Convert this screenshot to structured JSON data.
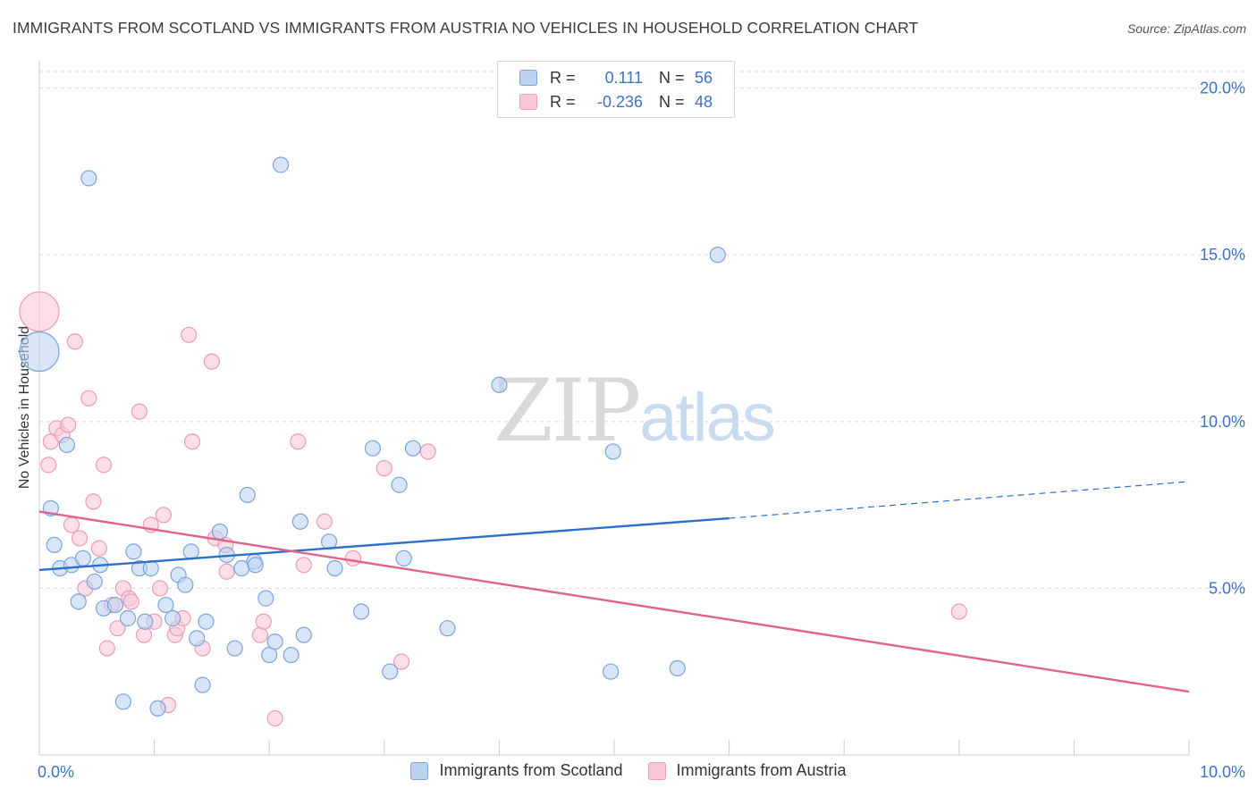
{
  "header": {
    "title": "IMMIGRANTS FROM SCOTLAND VS IMMIGRANTS FROM AUSTRIA NO VEHICLES IN HOUSEHOLD CORRELATION CHART",
    "source": "Source: ZipAtlas.com"
  },
  "watermark": {
    "zip": "ZIP",
    "atlas": "atlas"
  },
  "legend": {
    "rows": [
      {
        "r_label": "R =",
        "r_value": "0.111",
        "n_label": "N =",
        "n_value": "56"
      },
      {
        "r_label": "R =",
        "r_value": "-0.236",
        "n_label": "N =",
        "n_value": "48"
      }
    ]
  },
  "colors": {
    "scotland_fill": "#bcd3f0",
    "scotland_stroke": "#7ba4dc",
    "scotland_line": "#2e6fcc",
    "austria_fill": "#f8c8d8",
    "austria_stroke": "#ee9ab8",
    "austria_line": "#e0628f",
    "tick_label": "#3d72c4"
  },
  "chart_data": {
    "type": "scatter",
    "title": "IMMIGRANTS FROM SCOTLAND VS IMMIGRANTS FROM AUSTRIA NO VEHICLES IN HOUSEHOLD CORRELATION CHART",
    "xlabel": "",
    "ylabel": "No Vehicles in Household",
    "xlim": [
      0,
      10
    ],
    "ylim": [
      0,
      20.5
    ],
    "x_tick_labels": [
      "0.0%",
      "10.0%"
    ],
    "y_ticks": [
      5,
      10,
      15,
      20
    ],
    "y_tick_labels": [
      "5.0%",
      "10.0%",
      "15.0%",
      "20.0%"
    ],
    "grid": true,
    "legend_position": "top-center",
    "series": [
      {
        "name": "Immigrants from Scotland",
        "r": 0.111,
        "n": 56,
        "trend": {
          "x0": 0,
          "y0": 5.55,
          "x1": 6,
          "y1": 7.1,
          "dash_x1": 10,
          "dash_y1": 8.2
        },
        "points": [
          {
            "x": 0.0,
            "y": 12.1,
            "big": true
          },
          {
            "x": 0.1,
            "y": 7.4
          },
          {
            "x": 0.13,
            "y": 6.3
          },
          {
            "x": 0.18,
            "y": 5.6
          },
          {
            "x": 0.24,
            "y": 9.3
          },
          {
            "x": 0.28,
            "y": 5.7
          },
          {
            "x": 0.34,
            "y": 4.6
          },
          {
            "x": 0.38,
            "y": 5.9
          },
          {
            "x": 0.43,
            "y": 17.3
          },
          {
            "x": 0.48,
            "y": 5.2
          },
          {
            "x": 0.53,
            "y": 5.7
          },
          {
            "x": 0.56,
            "y": 4.4
          },
          {
            "x": 0.66,
            "y": 4.5
          },
          {
            "x": 0.73,
            "y": 1.6
          },
          {
            "x": 0.77,
            "y": 4.1
          },
          {
            "x": 0.82,
            "y": 6.1
          },
          {
            "x": 0.87,
            "y": 5.6
          },
          {
            "x": 0.92,
            "y": 4.0
          },
          {
            "x": 0.97,
            "y": 5.6
          },
          {
            "x": 1.03,
            "y": 1.4
          },
          {
            "x": 1.1,
            "y": 4.5
          },
          {
            "x": 1.16,
            "y": 4.1
          },
          {
            "x": 1.21,
            "y": 5.4
          },
          {
            "x": 1.27,
            "y": 5.1
          },
          {
            "x": 1.32,
            "y": 6.1
          },
          {
            "x": 1.37,
            "y": 3.5
          },
          {
            "x": 1.42,
            "y": 2.1
          },
          {
            "x": 1.45,
            "y": 4.0
          },
          {
            "x": 1.57,
            "y": 6.7
          },
          {
            "x": 1.63,
            "y": 6.0
          },
          {
            "x": 1.7,
            "y": 3.2
          },
          {
            "x": 1.76,
            "y": 5.6
          },
          {
            "x": 1.81,
            "y": 7.8
          },
          {
            "x": 1.87,
            "y": 5.8
          },
          {
            "x": 1.88,
            "y": 5.7
          },
          {
            "x": 1.97,
            "y": 4.7
          },
          {
            "x": 2.0,
            "y": 3.0
          },
          {
            "x": 2.05,
            "y": 3.4
          },
          {
            "x": 2.1,
            "y": 17.7
          },
          {
            "x": 2.19,
            "y": 3.0
          },
          {
            "x": 2.27,
            "y": 7.0
          },
          {
            "x": 2.3,
            "y": 3.6
          },
          {
            "x": 2.52,
            "y": 6.4
          },
          {
            "x": 2.57,
            "y": 5.6
          },
          {
            "x": 2.8,
            "y": 4.3
          },
          {
            "x": 2.9,
            "y": 9.2
          },
          {
            "x": 3.05,
            "y": 2.5
          },
          {
            "x": 3.13,
            "y": 8.1
          },
          {
            "x": 3.17,
            "y": 5.9
          },
          {
            "x": 3.25,
            "y": 9.2
          },
          {
            "x": 3.55,
            "y": 3.8
          },
          {
            "x": 4.0,
            "y": 11.1
          },
          {
            "x": 4.97,
            "y": 2.5
          },
          {
            "x": 4.99,
            "y": 9.1
          },
          {
            "x": 5.55,
            "y": 2.6
          },
          {
            "x": 5.9,
            "y": 15.0
          }
        ]
      },
      {
        "name": "Immigrants from Austria",
        "r": -0.236,
        "n": 48,
        "trend": {
          "x0": 0,
          "y0": 7.3,
          "x1": 10,
          "y1": 1.9
        },
        "points": [
          {
            "x": 0.0,
            "y": 13.3,
            "big": true
          },
          {
            "x": 0.08,
            "y": 8.7
          },
          {
            "x": 0.1,
            "y": 9.4
          },
          {
            "x": 0.15,
            "y": 9.8
          },
          {
            "x": 0.2,
            "y": 9.6
          },
          {
            "x": 0.25,
            "y": 9.9
          },
          {
            "x": 0.28,
            "y": 6.9
          },
          {
            "x": 0.31,
            "y": 12.4
          },
          {
            "x": 0.35,
            "y": 6.5
          },
          {
            "x": 0.4,
            "y": 5.0
          },
          {
            "x": 0.43,
            "y": 10.7
          },
          {
            "x": 0.47,
            "y": 7.6
          },
          {
            "x": 0.52,
            "y": 6.2
          },
          {
            "x": 0.56,
            "y": 8.7
          },
          {
            "x": 0.59,
            "y": 3.2
          },
          {
            "x": 0.63,
            "y": 4.5
          },
          {
            "x": 0.68,
            "y": 3.8
          },
          {
            "x": 0.73,
            "y": 5.0
          },
          {
            "x": 0.78,
            "y": 4.7
          },
          {
            "x": 0.8,
            "y": 4.6
          },
          {
            "x": 0.87,
            "y": 10.3
          },
          {
            "x": 0.91,
            "y": 3.6
          },
          {
            "x": 0.97,
            "y": 6.9
          },
          {
            "x": 1.0,
            "y": 4.0
          },
          {
            "x": 1.05,
            "y": 5.0
          },
          {
            "x": 1.08,
            "y": 7.2
          },
          {
            "x": 1.12,
            "y": 1.5
          },
          {
            "x": 1.18,
            "y": 3.6
          },
          {
            "x": 1.2,
            "y": 3.8
          },
          {
            "x": 1.25,
            "y": 4.1
          },
          {
            "x": 1.3,
            "y": 12.6
          },
          {
            "x": 1.33,
            "y": 9.4
          },
          {
            "x": 1.42,
            "y": 3.2
          },
          {
            "x": 1.5,
            "y": 11.8
          },
          {
            "x": 1.53,
            "y": 6.5
          },
          {
            "x": 1.62,
            "y": 6.3
          },
          {
            "x": 1.63,
            "y": 5.5
          },
          {
            "x": 1.92,
            "y": 3.6
          },
          {
            "x": 1.95,
            "y": 4.0
          },
          {
            "x": 2.05,
            "y": 1.1
          },
          {
            "x": 2.25,
            "y": 9.4
          },
          {
            "x": 2.3,
            "y": 5.7
          },
          {
            "x": 2.48,
            "y": 7.0
          },
          {
            "x": 2.73,
            "y": 5.9
          },
          {
            "x": 3.0,
            "y": 8.6
          },
          {
            "x": 3.15,
            "y": 2.8
          },
          {
            "x": 3.38,
            "y": 9.1
          },
          {
            "x": 8.0,
            "y": 4.3
          }
        ]
      }
    ]
  }
}
